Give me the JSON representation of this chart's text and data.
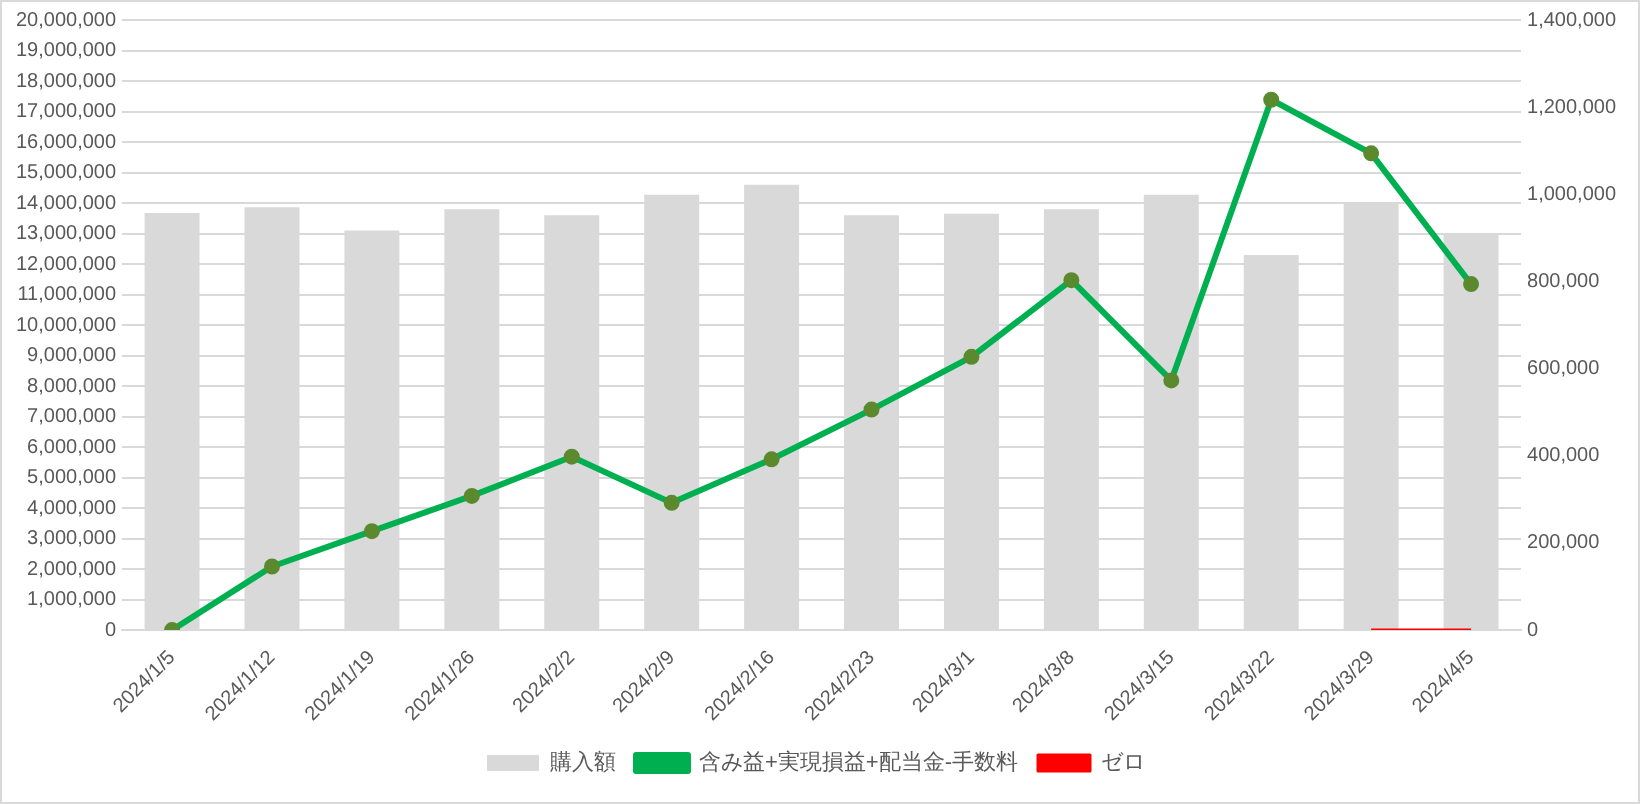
{
  "chart_data": {
    "type": "bar",
    "categories": [
      "2024/1/5",
      "2024/1/12",
      "2024/1/19",
      "2024/1/26",
      "2024/2/2",
      "2024/2/9",
      "2024/2/16",
      "2024/2/23",
      "2024/3/1",
      "2024/3/8",
      "2024/3/15",
      "2024/3/22",
      "2024/3/29",
      "2024/4/5"
    ],
    "series": [
      {
        "name": "購入額",
        "color": "#d9d9d9",
        "values": [
          13670000,
          13860000,
          13100000,
          13800000,
          13600000,
          14270000,
          14600000,
          13600000,
          13650000,
          13800000,
          14270000,
          12300000,
          14000000,
          13000000
        ]
      },
      {
        "name": "含み益+実現損益+配当金-手数料",
        "type": "line",
        "axis": "y2",
        "color": "#00b050",
        "marker": "circle",
        "values": [
          0,
          146000,
          227000,
          308000,
          398000,
          292000,
          392000,
          506000,
          627000,
          803000,
          573000,
          1217000,
          1094000,
          794000
        ]
      },
      {
        "name": "ゼロ",
        "type": "line",
        "axis": "y2",
        "color": "#ff0000",
        "marker": "none",
        "values": [
          null,
          null,
          null,
          null,
          null,
          null,
          null,
          null,
          null,
          null,
          null,
          null,
          0,
          0
        ]
      }
    ],
    "ylim": [
      0,
      20000000
    ],
    "yticks": [
      0,
      {
        "value": 1000000,
        "label": "1,000,000"
      },
      {
        "value": 2000000,
        "label": "2,000,000"
      },
      {
        "value": 3000000,
        "label": "3,000,000"
      },
      {
        "value": 4000000,
        "label": "4,000,000"
      },
      {
        "value": 5000000,
        "label": "5,000,000"
      },
      {
        "value": 6000000,
        "label": "6,000,000"
      },
      {
        "value": 7000000,
        "label": "7,000,000"
      },
      {
        "value": 8000000,
        "label": "8,000,000"
      },
      {
        "value": 9000000,
        "label": "9,000,000"
      },
      {
        "value": 10000000,
        "label": "10,000,000"
      },
      {
        "value": 11000000,
        "label": "11,000,000"
      },
      {
        "value": 12000000,
        "label": "12,000,000"
      },
      {
        "value": 13000000,
        "label": "13,000,000"
      },
      {
        "value": 14000000,
        "label": "14,000,000"
      },
      {
        "value": 15000000,
        "label": "15,000,000"
      },
      {
        "value": 16000000,
        "label": "16,000,000"
      },
      {
        "value": 17000000,
        "label": "17,000,000"
      },
      {
        "value": 18000000,
        "label": "18,000,000"
      },
      {
        "value": 19000000,
        "label": "19,000,000"
      },
      {
        "value": 20000000,
        "label": "20,000,000"
      }
    ],
    "y2lim": [
      0,
      1400000
    ],
    "y2ticks": [
      0,
      {
        "value": 200000,
        "label": "200,000"
      },
      {
        "value": 400000,
        "label": "400,000"
      },
      {
        "value": 600000,
        "label": "600,000"
      },
      {
        "value": 800000,
        "label": "800,000"
      },
      {
        "value": 1000000,
        "label": "1,000,000"
      },
      {
        "value": 1200000,
        "label": "1,200,000"
      },
      {
        "value": 1400000,
        "label": "1,400,000"
      }
    ],
    "grid": "y",
    "legend": "bottom"
  }
}
